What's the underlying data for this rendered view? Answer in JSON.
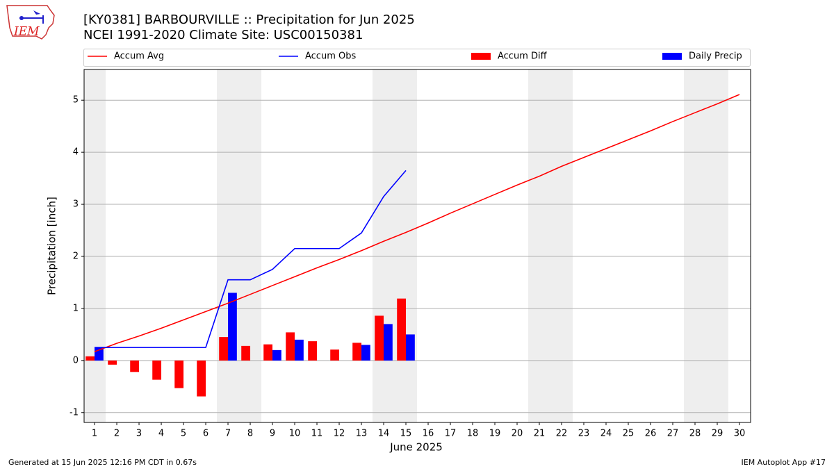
{
  "logo_text": "IEM",
  "footer": {
    "left": "Generated at 15 Jun 2025 12:16 PM CDT in 0.67s",
    "right": "IEM Autoplot App #17"
  },
  "chart_data": {
    "type": "bar",
    "title": "[KY0381] BARBOURVILLE :: Precipitation for Jun 2025",
    "subtitle": "NCEI 1991-2020 Climate Site: USC00150381",
    "xlabel": "June 2025",
    "ylabel": "Precipitation [inch]",
    "x": [
      1,
      2,
      3,
      4,
      5,
      6,
      7,
      8,
      9,
      10,
      11,
      12,
      13,
      14,
      15,
      16,
      17,
      18,
      19,
      20,
      21,
      22,
      23,
      24,
      25,
      26,
      27,
      28,
      29,
      30
    ],
    "series": [
      {
        "name": "Accum Avg",
        "type": "line",
        "color": "#ff0000",
        "values": [
          0.17,
          0.33,
          0.47,
          0.62,
          0.78,
          0.94,
          1.1,
          1.27,
          1.44,
          1.61,
          1.78,
          1.94,
          2.11,
          2.29,
          2.46,
          2.64,
          2.83,
          3.01,
          3.19,
          3.37,
          3.54,
          3.73,
          3.9,
          4.07,
          4.24,
          4.41,
          4.59,
          4.76,
          4.93,
          5.11
        ]
      },
      {
        "name": "Accum Obs",
        "type": "line",
        "color": "#0000ff",
        "values": [
          0.25,
          0.25,
          0.25,
          0.25,
          0.25,
          0.25,
          1.55,
          1.55,
          1.75,
          2.15,
          2.15,
          2.15,
          2.45,
          3.15,
          3.65,
          null,
          null,
          null,
          null,
          null,
          null,
          null,
          null,
          null,
          null,
          null,
          null,
          null,
          null,
          null
        ]
      },
      {
        "name": "Accum Diff",
        "type": "bar",
        "color": "#ff0000",
        "values": [
          0.08,
          -0.08,
          -0.22,
          -0.37,
          -0.53,
          -0.69,
          0.45,
          0.28,
          0.31,
          0.54,
          0.37,
          0.21,
          0.34,
          0.86,
          1.19,
          null,
          null,
          null,
          null,
          null,
          null,
          null,
          null,
          null,
          null,
          null,
          null,
          null,
          null,
          null
        ]
      },
      {
        "name": "Daily Precip",
        "type": "bar",
        "color": "#0000ff",
        "values": [
          0.25,
          0,
          0,
          0,
          0,
          0,
          1.3,
          0,
          0.2,
          0.4,
          0,
          0,
          0.3,
          0.7,
          0.5,
          null,
          null,
          null,
          null,
          null,
          null,
          null,
          null,
          null,
          null,
          null,
          null,
          null,
          null,
          null
        ]
      }
    ],
    "xlim": [
      0.53,
      30.5
    ],
    "xticks": [
      1,
      2,
      3,
      4,
      5,
      6,
      7,
      8,
      9,
      10,
      11,
      12,
      13,
      14,
      15,
      16,
      17,
      18,
      19,
      20,
      21,
      22,
      23,
      24,
      25,
      26,
      27,
      28,
      29,
      30
    ],
    "ylim": [
      -1.19,
      5.59
    ],
    "yticks": [
      -1,
      0,
      1,
      2,
      3,
      4,
      5
    ],
    "grid": true,
    "weekend_shading": true
  }
}
